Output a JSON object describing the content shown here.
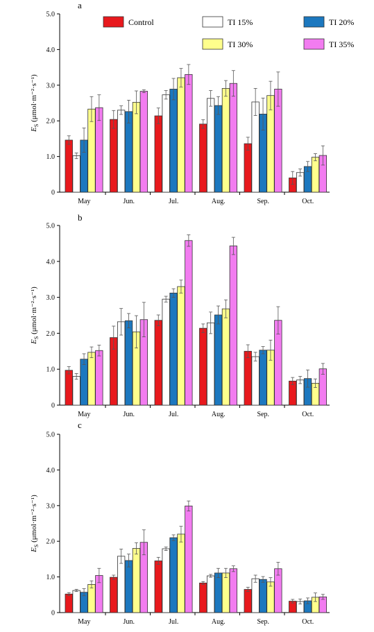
{
  "legend": {
    "entries": [
      {
        "name": "Control",
        "color": "#e8191d"
      },
      {
        "name": "TI 15%",
        "color": "#ffffff"
      },
      {
        "name": "TI 20%",
        "color": "#1c78bf"
      },
      {
        "name": "TI 30%",
        "color": "#ffff8c"
      },
      {
        "name": "TI 35%",
        "color": "#f27cf0"
      }
    ]
  },
  "chart_data": [
    {
      "type": "bar",
      "panel": "a",
      "ylabel_main": "E",
      "ylabel_sub": "S",
      "ylabel_unit": "(μmol·m⁻²·s⁻¹)",
      "ylim": [
        0,
        5
      ],
      "yticks": [
        "0",
        "1.0",
        "2.0",
        "3.0",
        "4.0",
        "5.0"
      ],
      "categories": [
        "May",
        "Jun.",
        "Jul.",
        "Aug.",
        "Sep.",
        "Oct."
      ],
      "series": [
        {
          "name": "Control",
          "values": [
            1.46,
            2.04,
            2.14,
            1.91,
            1.36,
            0.4
          ],
          "errors": [
            0.12,
            0.25,
            0.22,
            0.12,
            0.18,
            0.18
          ]
        },
        {
          "name": "TI 15%",
          "values": [
            1.02,
            2.3,
            2.73,
            2.63,
            2.53,
            0.55
          ],
          "errors": [
            0.08,
            0.12,
            0.12,
            0.22,
            0.38,
            0.1
          ]
        },
        {
          "name": "TI 20%",
          "values": [
            1.46,
            2.26,
            2.89,
            2.43,
            2.19,
            0.72
          ],
          "errors": [
            0.34,
            0.32,
            0.3,
            0.25,
            0.45,
            0.14
          ]
        },
        {
          "name": "TI 30%",
          "values": [
            2.33,
            2.52,
            3.21,
            2.91,
            2.71,
            0.98
          ],
          "errors": [
            0.35,
            0.32,
            0.26,
            0.22,
            0.4,
            0.1
          ]
        },
        {
          "name": "TI 35%",
          "values": [
            2.37,
            2.83,
            3.3,
            3.05,
            2.89,
            1.03
          ],
          "errors": [
            0.36,
            0.04,
            0.28,
            0.36,
            0.48,
            0.27
          ]
        }
      ]
    },
    {
      "type": "bar",
      "panel": "b",
      "ylabel_main": "E",
      "ylabel_sub": "S",
      "ylabel_unit": "(μmol·m⁻²·s⁻¹)",
      "ylim": [
        0,
        5
      ],
      "yticks": [
        "0",
        "1.0",
        "2.0",
        "3.0",
        "4.0",
        "5.0"
      ],
      "categories": [
        "May",
        "Jun.",
        "Jul.",
        "Aug.",
        "Sep.",
        "Oct."
      ],
      "series": [
        {
          "name": "Control",
          "values": [
            0.97,
            1.88,
            2.36,
            2.14,
            1.5,
            0.67
          ],
          "errors": [
            0.1,
            0.32,
            0.15,
            0.12,
            0.18,
            0.1
          ]
        },
        {
          "name": "TI 15%",
          "values": [
            0.8,
            2.32,
            2.95,
            2.29,
            1.35,
            0.7
          ],
          "errors": [
            0.08,
            0.37,
            0.08,
            0.3,
            0.12,
            0.1
          ]
        },
        {
          "name": "TI 20%",
          "values": [
            1.28,
            2.35,
            3.12,
            2.51,
            1.53,
            0.74
          ],
          "errors": [
            0.15,
            0.2,
            0.12,
            0.25,
            0.1,
            0.24
          ]
        },
        {
          "name": "TI 30%",
          "values": [
            1.47,
            2.04,
            3.3,
            2.68,
            1.53,
            0.61
          ],
          "errors": [
            0.15,
            0.45,
            0.18,
            0.25,
            0.28,
            0.12
          ]
        },
        {
          "name": "TI 35%",
          "values": [
            1.52,
            2.38,
            4.58,
            4.43,
            2.36,
            1.01
          ],
          "errors": [
            0.15,
            0.48,
            0.16,
            0.24,
            0.38,
            0.15
          ]
        }
      ]
    },
    {
      "type": "bar",
      "panel": "c",
      "ylabel_main": "E",
      "ylabel_sub": "S",
      "ylabel_unit": "(μmol·m⁻²·s⁻¹)",
      "ylim": [
        0,
        5
      ],
      "yticks": [
        "0",
        "1.0",
        "2.0",
        "3.0",
        "4.0",
        "5.0"
      ],
      "categories": [
        "May",
        "Jun.",
        "Jul.",
        "Aug.",
        "Sep.",
        "Oct."
      ],
      "series": [
        {
          "name": "Control",
          "values": [
            0.52,
            0.99,
            1.45,
            0.83,
            0.65,
            0.32
          ],
          "errors": [
            0.04,
            0.06,
            0.1,
            0.04,
            0.06,
            0.05
          ]
        },
        {
          "name": "TI 15%",
          "values": [
            0.62,
            1.58,
            1.79,
            1.03,
            0.95,
            0.31
          ],
          "errors": [
            0.03,
            0.2,
            0.05,
            0.04,
            0.1,
            0.07
          ]
        },
        {
          "name": "TI 20%",
          "values": [
            0.57,
            1.46,
            2.1,
            1.11,
            0.93,
            0.33
          ],
          "errors": [
            0.1,
            0.18,
            0.08,
            0.13,
            0.08,
            0.08
          ]
        },
        {
          "name": "TI 30%",
          "values": [
            0.79,
            1.8,
            2.2,
            1.11,
            0.86,
            0.43
          ],
          "errors": [
            0.1,
            0.16,
            0.22,
            0.13,
            0.12,
            0.12
          ]
        },
        {
          "name": "TI 35%",
          "values": [
            1.04,
            1.97,
            2.99,
            1.23,
            1.23,
            0.44
          ],
          "errors": [
            0.2,
            0.35,
            0.14,
            0.08,
            0.18,
            0.07
          ]
        }
      ]
    }
  ]
}
